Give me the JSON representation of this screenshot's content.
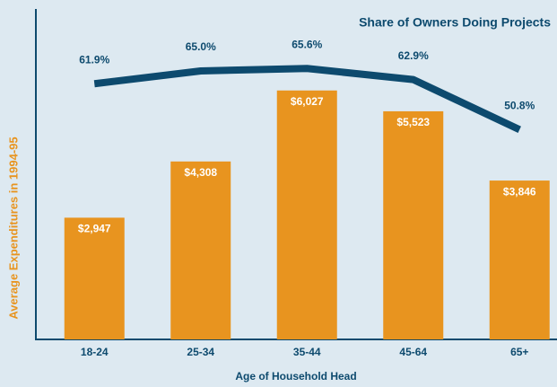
{
  "chart_data": {
    "type": "bar",
    "title": "Share of Owners Doing Projects",
    "x_label": "Age of Household Head",
    "y_label": "Average Expenditures in 1994-95",
    "categories": [
      "18-24",
      "25-34",
      "35-44",
      "45-64",
      "65+"
    ],
    "series": [
      {
        "type": "bar",
        "color": "#e8941f",
        "values": [
          2947,
          4308,
          6027,
          5523,
          3846
        ],
        "value_labels": [
          "$2,947",
          "$4,308",
          "$6,027",
          "$5,523",
          "$3,846"
        ]
      },
      {
        "type": "line",
        "axis": "y2",
        "color": "#0d4a6e",
        "values": [
          61.9,
          65.0,
          65.6,
          62.9,
          50.8
        ],
        "value_labels": [
          "61.9%",
          "65.0%",
          "65.6%",
          "62.9%",
          "50.8%"
        ]
      }
    ],
    "ylim": [
      0,
      8000
    ],
    "y2lim": [
      0,
      80
    ]
  }
}
